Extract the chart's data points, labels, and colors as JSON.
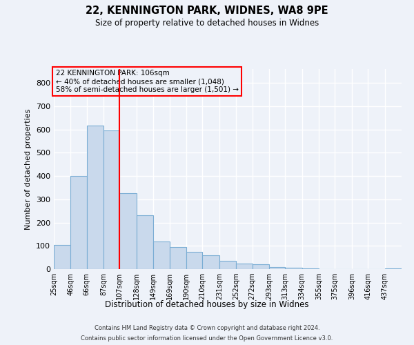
{
  "title1": "22, KENNINGTON PARK, WIDNES, WA8 9PE",
  "title2": "Size of property relative to detached houses in Widnes",
  "xlabel": "Distribution of detached houses by size in Widnes",
  "ylabel": "Number of detached properties",
  "footer1": "Contains HM Land Registry data © Crown copyright and database right 2024.",
  "footer2": "Contains public sector information licensed under the Open Government Licence v3.0.",
  "annotation_line1": "22 KENNINGTON PARK: 106sqm",
  "annotation_line2": "← 40% of detached houses are smaller (1,048)",
  "annotation_line3": "58% of semi-detached houses are larger (1,501) →",
  "bar_color": "#c9d9ec",
  "bar_edge_color": "#7aadd4",
  "red_line_x": 107,
  "categories": [
    "25sqm",
    "46sqm",
    "66sqm",
    "87sqm",
    "107sqm",
    "128sqm",
    "149sqm",
    "169sqm",
    "190sqm",
    "210sqm",
    "231sqm",
    "252sqm",
    "272sqm",
    "293sqm",
    "313sqm",
    "334sqm",
    "355sqm",
    "375sqm",
    "396sqm",
    "416sqm",
    "437sqm"
  ],
  "bin_edges": [
    25,
    46,
    66,
    87,
    107,
    128,
    149,
    169,
    190,
    210,
    231,
    252,
    272,
    293,
    313,
    334,
    355,
    375,
    396,
    416,
    437,
    458
  ],
  "values": [
    105,
    400,
    617,
    597,
    325,
    230,
    120,
    95,
    75,
    60,
    35,
    25,
    20,
    8,
    5,
    2,
    1,
    0,
    0,
    0,
    2
  ],
  "ylim": [
    0,
    860
  ],
  "yticks": [
    0,
    100,
    200,
    300,
    400,
    500,
    600,
    700,
    800
  ],
  "background_color": "#eef2f9",
  "grid_color": "#ffffff"
}
